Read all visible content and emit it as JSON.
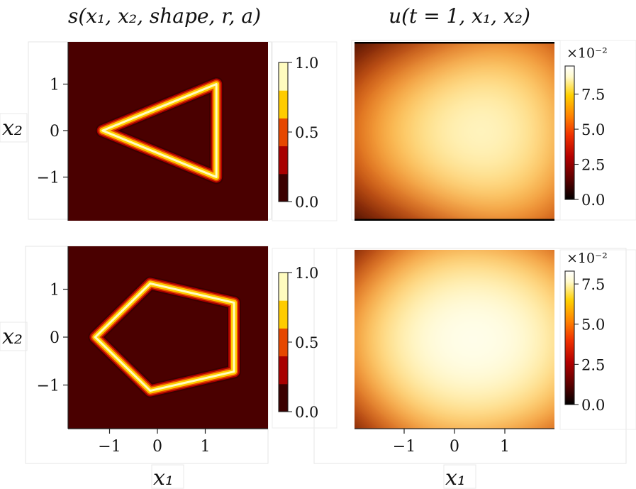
{
  "titles": {
    "left": "s(x₁, x₂, shape, r, a)",
    "right": "u(t = 1, x₁, x₂)"
  },
  "axis_labels": {
    "x": "x₁",
    "y": "x₂"
  },
  "colors": {
    "background": "#4a0000",
    "colormap": [
      "#000000",
      "#5a0000",
      "#b40000",
      "#f03000",
      "#ff8000",
      "#ffd000",
      "#fffacc",
      "#ffffff"
    ],
    "mask_levels": [
      "#3a0000",
      "#a80000",
      "#e64800",
      "#ffcc00",
      "#fffcbf"
    ]
  },
  "chart_data": [
    {
      "type": "heatmap",
      "panel": "top-left",
      "title": "s(x₁, x₂, shape, r, a)",
      "xlabel": "",
      "ylabel": "x₂",
      "shape": "triangle",
      "vertices": [
        [
          1.27,
          1.0
        ],
        [
          -1.18,
          0.0
        ],
        [
          1.27,
          -1.0
        ]
      ],
      "xlim": [
        -1.9,
        2.2
      ],
      "ylim": [
        -1.9,
        1.9
      ],
      "xticks": [],
      "yticks": [
        -1,
        0,
        1
      ],
      "ytick_labels": [
        "−1",
        "0",
        "1"
      ],
      "colorbar": {
        "range": [
          0,
          1.0
        ],
        "ticks": [
          0.0,
          0.5,
          1.0
        ],
        "tick_labels": [
          "0.0",
          "0.5",
          "1.0"
        ],
        "discrete": true,
        "multiplier": ""
      }
    },
    {
      "type": "heatmap",
      "panel": "top-right",
      "title": "u(t = 1, x₁, x₂)",
      "xlabel": "",
      "ylabel": "",
      "xlim": [
        -1.9,
        1.9
      ],
      "ylim": [
        -1.9,
        1.9
      ],
      "xticks": [],
      "yticks": [],
      "colorbar": {
        "range": [
          0,
          9.5
        ],
        "ticks": [
          0.0,
          2.5,
          5.0,
          7.5
        ],
        "tick_labels": [
          "0.0",
          "2.5",
          "5.0",
          "7.5"
        ],
        "multiplier": "×10⁻²"
      }
    },
    {
      "type": "heatmap",
      "panel": "bottom-left",
      "title": "",
      "xlabel": "x₁",
      "ylabel": "x₂",
      "shape": "pentagon",
      "vertices": [
        [
          -0.15,
          1.12
        ],
        [
          1.6,
          0.72
        ],
        [
          1.6,
          -0.72
        ],
        [
          -0.15,
          -1.12
        ],
        [
          -1.3,
          0.0
        ]
      ],
      "xlim": [
        -1.9,
        2.2
      ],
      "ylim": [
        -1.9,
        1.9
      ],
      "xticks": [
        -1,
        0,
        1
      ],
      "xtick_labels": [
        "−1",
        "0",
        "1"
      ],
      "yticks": [
        -1,
        0,
        1
      ],
      "ytick_labels": [
        "−1",
        "0",
        "1"
      ],
      "colorbar": {
        "range": [
          0,
          1.0
        ],
        "ticks": [
          0.0,
          0.5,
          1.0
        ],
        "tick_labels": [
          "0.0",
          "0.5",
          "1.0"
        ],
        "discrete": true,
        "multiplier": ""
      }
    },
    {
      "type": "heatmap",
      "panel": "bottom-right",
      "title": "",
      "xlabel": "x₁",
      "ylabel": "",
      "xlim": [
        -1.9,
        1.9
      ],
      "ylim": [
        -1.9,
        1.9
      ],
      "xticks": [
        -1,
        0,
        1
      ],
      "xtick_labels": [
        "−1",
        "0",
        "1"
      ],
      "yticks": [],
      "colorbar": {
        "range": [
          0,
          8.3
        ],
        "ticks": [
          0.0,
          2.5,
          5.0,
          7.5
        ],
        "tick_labels": [
          "0.0",
          "2.5",
          "5.0",
          "7.5"
        ],
        "multiplier": "×10⁻²"
      }
    }
  ]
}
